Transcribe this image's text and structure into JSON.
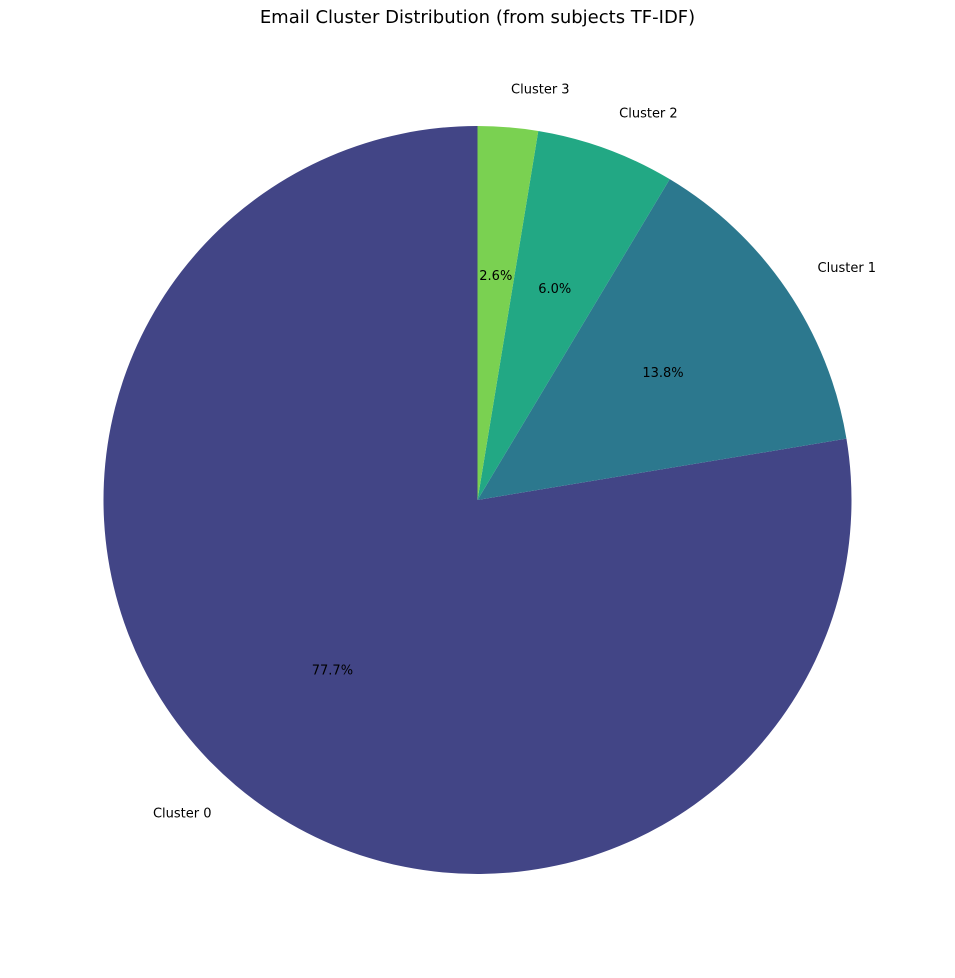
{
  "chart_data": {
    "type": "pie",
    "title": "Email Cluster Distribution (from subjects TF-IDF)",
    "start_angle_deg": 90,
    "direction": "counterclockwise",
    "slices": [
      {
        "label": "Cluster 0",
        "value": 77.7,
        "pct_label": "77.7%",
        "color": "#424586"
      },
      {
        "label": "Cluster 1",
        "value": 13.8,
        "pct_label": "13.8%",
        "color": "#2c788e"
      },
      {
        "label": "Cluster 2",
        "value": 6.0,
        "pct_label": "6.0%",
        "color": "#22a884"
      },
      {
        "label": "Cluster 3",
        "value": 2.6,
        "pct_label": "2.6%",
        "color": "#7ad151"
      }
    ],
    "legend": "none",
    "grid": false
  }
}
